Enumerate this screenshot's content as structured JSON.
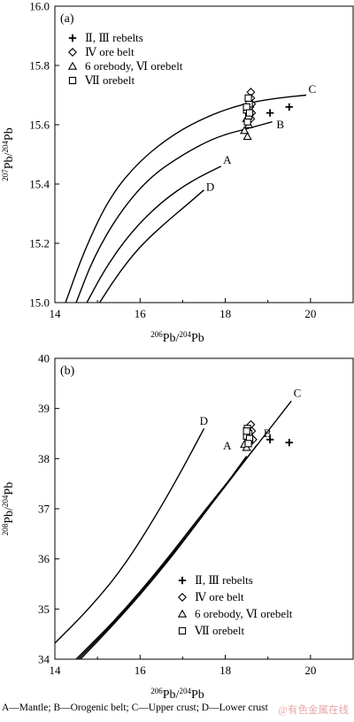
{
  "figure": {
    "caption": "A—Mantle; B—Orogenic belt; C—Upper crust; D—Lower crust",
    "watermark": "@有色金属在线"
  },
  "chart_data": [
    {
      "type": "scatter",
      "panel_label": "(a)",
      "xlabel": "206Pb/204Pb",
      "ylabel": "207Pb/204Pb",
      "xlim": [
        14,
        21
      ],
      "ylim": [
        15.0,
        16.0
      ],
      "xticks": [
        "14",
        "16",
        "18",
        "20"
      ],
      "yticks": [
        "15.0",
        "15.2",
        "15.4",
        "15.6",
        "15.8",
        "16.0"
      ],
      "xtick_values": [
        14,
        16,
        18,
        20
      ],
      "ytick_values": [
        15.0,
        15.2,
        15.4,
        15.6,
        15.8,
        16.0
      ],
      "legend": {
        "placement": "top-left",
        "entries": [
          {
            "marker": "plus",
            "label": "Ⅱ, Ⅲ rebelts"
          },
          {
            "marker": "diamond",
            "label": "Ⅳ ore belt"
          },
          {
            "marker": "triangle",
            "label": "6 orebody, Ⅵ orebelt"
          },
          {
            "marker": "square",
            "label": "Ⅶ orebelt"
          }
        ]
      },
      "curves": [
        {
          "label": "C",
          "points": [
            [
              14.25,
              15.0
            ],
            [
              14.7,
              15.18
            ],
            [
              15.3,
              15.36
            ],
            [
              16.0,
              15.48
            ],
            [
              16.8,
              15.57
            ],
            [
              17.6,
              15.63
            ],
            [
              18.4,
              15.67
            ],
            [
              19.2,
              15.69
            ],
            [
              19.9,
              15.7
            ]
          ]
        },
        {
          "label": "B",
          "points": [
            [
              14.5,
              15.0
            ],
            [
              14.9,
              15.15
            ],
            [
              15.5,
              15.3
            ],
            [
              16.2,
              15.42
            ],
            [
              17.0,
              15.5
            ],
            [
              17.8,
              15.56
            ],
            [
              18.6,
              15.59
            ],
            [
              19.1,
              15.61
            ]
          ]
        },
        {
          "label": "A",
          "points": [
            [
              14.75,
              15.0
            ],
            [
              15.2,
              15.12
            ],
            [
              15.8,
              15.24
            ],
            [
              16.5,
              15.34
            ],
            [
              17.2,
              15.41
            ],
            [
              17.9,
              15.46
            ]
          ]
        },
        {
          "label": "D",
          "points": [
            [
              15.05,
              15.0
            ],
            [
              15.5,
              15.1
            ],
            [
              16.0,
              15.19
            ],
            [
              16.6,
              15.27
            ],
            [
              17.1,
              15.33
            ],
            [
              17.5,
              15.38
            ]
          ]
        }
      ],
      "curve_label_positions": {
        "C": [
          19.95,
          15.72
        ],
        "B": [
          19.2,
          15.6
        ],
        "A": [
          17.95,
          15.48
        ],
        "D": [
          17.55,
          15.39
        ]
      },
      "series": [
        {
          "marker": "plus",
          "points": [
            [
              19.05,
              15.64
            ],
            [
              19.5,
              15.66
            ]
          ]
        },
        {
          "marker": "diamond",
          "points": [
            [
              18.6,
              15.71
            ],
            [
              18.6,
              15.69
            ],
            [
              18.62,
              15.67
            ],
            [
              18.58,
              15.66
            ],
            [
              18.62,
              15.64
            ],
            [
              18.6,
              15.62
            ]
          ]
        },
        {
          "marker": "triangle",
          "points": [
            [
              18.45,
              15.58
            ],
            [
              18.52,
              15.56
            ],
            [
              18.55,
              15.6
            ],
            [
              18.5,
              15.62
            ]
          ]
        },
        {
          "marker": "square",
          "points": [
            [
              18.52,
              15.61
            ],
            [
              18.55,
              15.63
            ],
            [
              18.5,
              15.65
            ],
            [
              18.56,
              15.67
            ],
            [
              18.54,
              15.69
            ],
            [
              18.5,
              15.66
            ],
            [
              18.57,
              15.64
            ]
          ]
        }
      ]
    },
    {
      "type": "scatter",
      "panel_label": "(b)",
      "xlabel": "206Pb/204Pb",
      "ylabel": "208Pb/204Pb",
      "xlim": [
        14,
        21
      ],
      "ylim": [
        34,
        40
      ],
      "xticks": [
        "14",
        "16",
        "18",
        "20"
      ],
      "yticks": [
        "34",
        "35",
        "36",
        "37",
        "38",
        "39",
        "40"
      ],
      "xtick_values": [
        14,
        16,
        18,
        20
      ],
      "ytick_values": [
        34,
        35,
        36,
        37,
        38,
        39,
        40
      ],
      "legend": {
        "placement": "bottom-right",
        "entries": [
          {
            "marker": "plus",
            "label": "Ⅱ, Ⅲ rebelts"
          },
          {
            "marker": "diamond",
            "label": "Ⅳ ore belt"
          },
          {
            "marker": "triangle",
            "label": "6 orebody, Ⅵ orebelt"
          },
          {
            "marker": "square",
            "label": "Ⅶ orebelt"
          }
        ]
      },
      "curves": [
        {
          "label": "D",
          "points": [
            [
              14.0,
              34.32
            ],
            [
              14.8,
              35.0
            ],
            [
              15.6,
              35.82
            ],
            [
              16.4,
              36.9
            ],
            [
              17.0,
              37.8
            ],
            [
              17.5,
              38.6
            ]
          ]
        },
        {
          "label": "C",
          "points": [
            [
              14.5,
              34.0
            ],
            [
              15.5,
              34.85
            ],
            [
              16.5,
              35.85
            ],
            [
              17.5,
              36.95
            ],
            [
              18.5,
              38.0
            ],
            [
              19.55,
              39.15
            ]
          ]
        },
        {
          "label": "B",
          "points": [
            [
              14.55,
              34.0
            ],
            [
              15.5,
              34.83
            ],
            [
              16.5,
              35.82
            ],
            [
              17.5,
              36.9
            ],
            [
              18.3,
              37.78
            ],
            [
              18.75,
              38.28
            ]
          ]
        },
        {
          "label": "A",
          "points": [
            [
              14.6,
              34.0
            ],
            [
              15.5,
              34.8
            ],
            [
              16.5,
              35.78
            ],
            [
              17.4,
              36.78
            ],
            [
              18.1,
              37.58
            ],
            [
              18.5,
              38.05
            ]
          ]
        }
      ],
      "curve_label_positions": {
        "D": [
          17.4,
          38.75
        ],
        "C": [
          19.6,
          39.3
        ],
        "B": [
          18.9,
          38.5
        ],
        "A": [
          17.95,
          38.25
        ]
      },
      "series": [
        {
          "marker": "plus",
          "points": [
            [
              19.05,
              38.38
            ],
            [
              19.5,
              38.32
            ]
          ]
        },
        {
          "marker": "diamond",
          "points": [
            [
              18.6,
              38.68
            ],
            [
              18.62,
              38.55
            ],
            [
              18.6,
              38.42
            ],
            [
              18.65,
              38.38
            ]
          ]
        },
        {
          "marker": "triangle",
          "points": [
            [
              18.45,
              38.28
            ],
            [
              18.5,
              38.22
            ],
            [
              18.55,
              38.35
            ]
          ]
        },
        {
          "marker": "square",
          "points": [
            [
              18.52,
              38.6
            ],
            [
              18.55,
              38.5
            ],
            [
              18.5,
              38.45
            ],
            [
              18.57,
              38.4
            ],
            [
              18.54,
              38.3
            ],
            [
              18.5,
              38.55
            ]
          ]
        }
      ]
    }
  ]
}
